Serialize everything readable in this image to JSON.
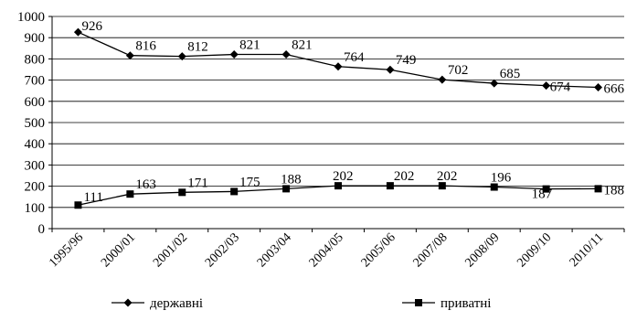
{
  "chart_data": {
    "type": "line",
    "categories": [
      "1995/96",
      "2000/01",
      "2001/02",
      "2002/03",
      "2003/04",
      "2004/05",
      "2005/06",
      "2007/08",
      "2008/09",
      "2009/10",
      "2010/11"
    ],
    "series": [
      {
        "name": "державні",
        "marker": "diamond",
        "values": [
          926,
          816,
          812,
          821,
          821,
          764,
          749,
          702,
          685,
          674,
          666
        ]
      },
      {
        "name": "приватні",
        "marker": "square",
        "values": [
          111,
          163,
          171,
          175,
          188,
          202,
          202,
          202,
          196,
          187,
          188
        ]
      }
    ],
    "y_ticks": [
      "0",
      "100",
      "200",
      "300",
      "400",
      "500",
      "600",
      "700",
      "800",
      "900",
      "1000"
    ],
    "ylim": [
      0,
      1000
    ],
    "grid": true,
    "legend_position": "bottom",
    "title": "",
    "xlabel": "",
    "ylabel": ""
  }
}
